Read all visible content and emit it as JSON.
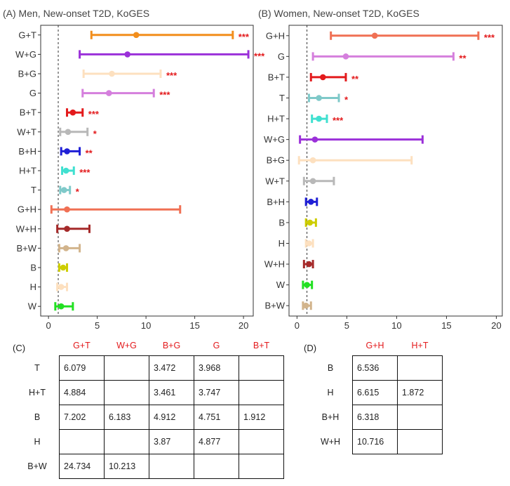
{
  "chart_data": [
    {
      "type": "forest",
      "title": "(A) Men, New-onset T2D, KoGES",
      "xlim": [
        -0.8,
        21
      ],
      "xticks": [
        0,
        5,
        10,
        15,
        20
      ],
      "reference_line": 1,
      "rows": [
        {
          "label": "G+T",
          "est": 9.0,
          "lo": 4.4,
          "hi": 18.9,
          "color": "#f28e1c",
          "sig": "***"
        },
        {
          "label": "W+G",
          "est": 8.1,
          "lo": 3.2,
          "hi": 20.5,
          "color": "#9b30d9",
          "sig": "***"
        },
        {
          "label": "B+G",
          "est": 6.5,
          "lo": 3.6,
          "hi": 11.5,
          "color": "#fde0bf",
          "sig": "***"
        },
        {
          "label": "G",
          "est": 6.2,
          "lo": 3.5,
          "hi": 10.8,
          "color": "#d57fdd",
          "sig": "***"
        },
        {
          "label": "B+T",
          "est": 2.5,
          "lo": 1.9,
          "hi": 3.5,
          "color": "#e31a1c",
          "sig": "***"
        },
        {
          "label": "W+T",
          "est": 2.0,
          "lo": 1.2,
          "hi": 4.0,
          "color": "#b8b8b8",
          "sig": "*"
        },
        {
          "label": "B+H",
          "est": 1.9,
          "lo": 1.3,
          "hi": 3.2,
          "color": "#1f1fd6",
          "sig": "**"
        },
        {
          "label": "H+T",
          "est": 1.8,
          "lo": 1.4,
          "hi": 2.6,
          "color": "#40e0d0",
          "sig": "***"
        },
        {
          "label": "T",
          "est": 1.6,
          "lo": 1.2,
          "hi": 2.2,
          "color": "#7fc9c9",
          "sig": "*"
        },
        {
          "label": "G+H",
          "est": 1.9,
          "lo": 0.3,
          "hi": 13.5,
          "color": "#f07054",
          "sig": ""
        },
        {
          "label": "W+H",
          "est": 1.9,
          "lo": 0.9,
          "hi": 4.2,
          "color": "#a52a2a",
          "sig": ""
        },
        {
          "label": "B+W",
          "est": 1.8,
          "lo": 1.1,
          "hi": 3.2,
          "color": "#d2b48c",
          "sig": ""
        },
        {
          "label": "B",
          "est": 1.5,
          "lo": 1.1,
          "hi": 1.9,
          "color": "#cdcd00",
          "sig": ""
        },
        {
          "label": "H",
          "est": 1.3,
          "lo": 0.9,
          "hi": 1.9,
          "color": "#fde0bf",
          "sig": ""
        },
        {
          "label": "W",
          "est": 1.3,
          "lo": 0.7,
          "hi": 2.5,
          "color": "#22e022",
          "sig": ""
        }
      ]
    },
    {
      "type": "forest",
      "title": "(B) Women, New-onset T2D, KoGES",
      "xlim": [
        -0.8,
        20.6
      ],
      "xticks": [
        0,
        5,
        10,
        15,
        20
      ],
      "reference_line": 1,
      "rows": [
        {
          "label": "G+H",
          "est": 7.8,
          "lo": 3.4,
          "hi": 18.2,
          "color": "#f07054",
          "sig": "***"
        },
        {
          "label": "G",
          "est": 4.9,
          "lo": 1.6,
          "hi": 15.7,
          "color": "#d57fdd",
          "sig": "**"
        },
        {
          "label": "B+T",
          "est": 2.6,
          "lo": 1.4,
          "hi": 4.9,
          "color": "#e31a1c",
          "sig": "**"
        },
        {
          "label": "T",
          "est": 2.2,
          "lo": 1.2,
          "hi": 4.2,
          "color": "#7fc9c9",
          "sig": "*"
        },
        {
          "label": "H+T",
          "est": 2.2,
          "lo": 1.5,
          "hi": 3.0,
          "color": "#40e0d0",
          "sig": "***"
        },
        {
          "label": "W+G",
          "est": 1.8,
          "lo": 0.3,
          "hi": 12.6,
          "color": "#9b30d9",
          "sig": ""
        },
        {
          "label": "B+G",
          "est": 1.6,
          "lo": 0.2,
          "hi": 11.5,
          "color": "#fde0bf",
          "sig": ""
        },
        {
          "label": "W+T",
          "est": 1.6,
          "lo": 0.7,
          "hi": 3.7,
          "color": "#b8b8b8",
          "sig": ""
        },
        {
          "label": "B+H",
          "est": 1.4,
          "lo": 0.9,
          "hi": 2.0,
          "color": "#1f1fd6",
          "sig": ""
        },
        {
          "label": "B",
          "est": 1.3,
          "lo": 0.9,
          "hi": 1.9,
          "color": "#cdcd00",
          "sig": ""
        },
        {
          "label": "H",
          "est": 1.2,
          "lo": 0.9,
          "hi": 1.6,
          "color": "#fde0bf",
          "sig": ""
        },
        {
          "label": "W+H",
          "est": 1.2,
          "lo": 0.7,
          "hi": 1.6,
          "color": "#a52a2a",
          "sig": ""
        },
        {
          "label": "W",
          "est": 1.0,
          "lo": 0.6,
          "hi": 1.5,
          "color": "#22e022",
          "sig": ""
        },
        {
          "label": "B+W",
          "est": 0.9,
          "lo": 0.6,
          "hi": 1.4,
          "color": "#d2b48c",
          "sig": ""
        }
      ]
    }
  ],
  "tables": {
    "c": {
      "label": "(C)",
      "columns": [
        "G+T",
        "W+G",
        "B+G",
        "G",
        "B+T"
      ],
      "rows": [
        {
          "label": "T",
          "cells": [
            "6.079",
            "",
            "3.472",
            "3.968",
            ""
          ]
        },
        {
          "label": "H+T",
          "cells": [
            "4.884",
            "",
            "3.461",
            "3.747",
            ""
          ]
        },
        {
          "label": "B",
          "cells": [
            "7.202",
            "6.183",
            "4.912",
            "4.751",
            "1.912"
          ]
        },
        {
          "label": "H",
          "cells": [
            "",
            "",
            "3.87",
            "4.877",
            ""
          ]
        },
        {
          "label": "B+W",
          "cells": [
            "24.734",
            "10.213",
            "",
            "",
            ""
          ]
        }
      ]
    },
    "d": {
      "label": "(D)",
      "columns": [
        "G+H",
        "H+T"
      ],
      "rows": [
        {
          "label": "B",
          "cells": [
            "6.536",
            ""
          ]
        },
        {
          "label": "H",
          "cells": [
            "6.615",
            "1.872"
          ]
        },
        {
          "label": "B+H",
          "cells": [
            "6.318",
            ""
          ]
        },
        {
          "label": "W+H",
          "cells": [
            "10.716",
            ""
          ]
        }
      ]
    }
  }
}
